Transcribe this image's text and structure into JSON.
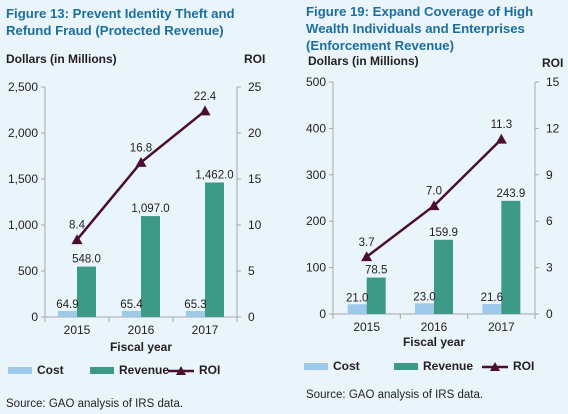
{
  "chart_data": [
    {
      "type": "bar",
      "title_lines": [
        "Figure 13: Prevent Identity Theft and",
        "Refund Fraud (Protected Revenue)"
      ],
      "ylabel": "Dollars (in Millions)",
      "y2label": "ROI",
      "xlabel": "Fiscal year",
      "categories": [
        "2015",
        "2016",
        "2017"
      ],
      "ylim": [
        0,
        2500
      ],
      "yticks": [
        "0",
        "500",
        "1,000",
        "1,500",
        "2,000",
        "2,500"
      ],
      "y2lim": [
        0,
        25
      ],
      "y2ticks": [
        "0",
        "5",
        "10",
        "15",
        "20",
        "25"
      ],
      "series": [
        {
          "name": "Cost",
          "type": "bar",
          "axis": "left",
          "color": "#9fc9ea",
          "values": [
            64.9,
            65.4,
            65.3
          ],
          "labels": [
            "64.9",
            "65.4",
            "65.3"
          ]
        },
        {
          "name": "Revenue",
          "type": "bar",
          "axis": "left",
          "color": "#3c9a87",
          "values": [
            548.0,
            1097.0,
            1462.0
          ],
          "labels": [
            "548.0",
            "1,097.0",
            "1,462.0"
          ]
        },
        {
          "name": "ROI",
          "type": "line",
          "axis": "right",
          "color": "#4b0e33",
          "marker": "triangle",
          "values": [
            8.4,
            16.8,
            22.4
          ],
          "labels": [
            "8.4",
            "16.8",
            "22.4"
          ]
        }
      ],
      "source": "Source: GAO analysis of IRS data."
    },
    {
      "type": "bar",
      "title_lines": [
        "Figure 19: Expand Coverage of High",
        "Wealth Individuals and Enterprises",
        "(Enforcement Revenue)"
      ],
      "ylabel": "Dollars (in Millions)",
      "y2label": "ROI",
      "xlabel": "Fiscal year",
      "categories": [
        "2015",
        "2016",
        "2017"
      ],
      "ylim": [
        0,
        500
      ],
      "yticks": [
        "0",
        "100",
        "200",
        "300",
        "400",
        "500"
      ],
      "y2lim": [
        0,
        15
      ],
      "y2ticks": [
        "0",
        "3",
        "6",
        "9",
        "12",
        "15"
      ],
      "series": [
        {
          "name": "Cost",
          "type": "bar",
          "axis": "left",
          "color": "#9fc9ea",
          "values": [
            21.0,
            23.0,
            21.6
          ],
          "labels": [
            "21.0",
            "23.0",
            "21.6"
          ]
        },
        {
          "name": "Revenue",
          "type": "bar",
          "axis": "left",
          "color": "#3c9a87",
          "values": [
            78.5,
            159.9,
            243.9
          ],
          "labels": [
            "78.5",
            "159.9",
            "243.9"
          ]
        },
        {
          "name": "ROI",
          "type": "line",
          "axis": "right",
          "color": "#4b0e33",
          "marker": "triangle",
          "values": [
            3.7,
            7.0,
            11.3
          ],
          "labels": [
            "3.7",
            "7.0",
            "11.3"
          ]
        }
      ],
      "source": "Source: GAO analysis of IRS data."
    }
  ]
}
